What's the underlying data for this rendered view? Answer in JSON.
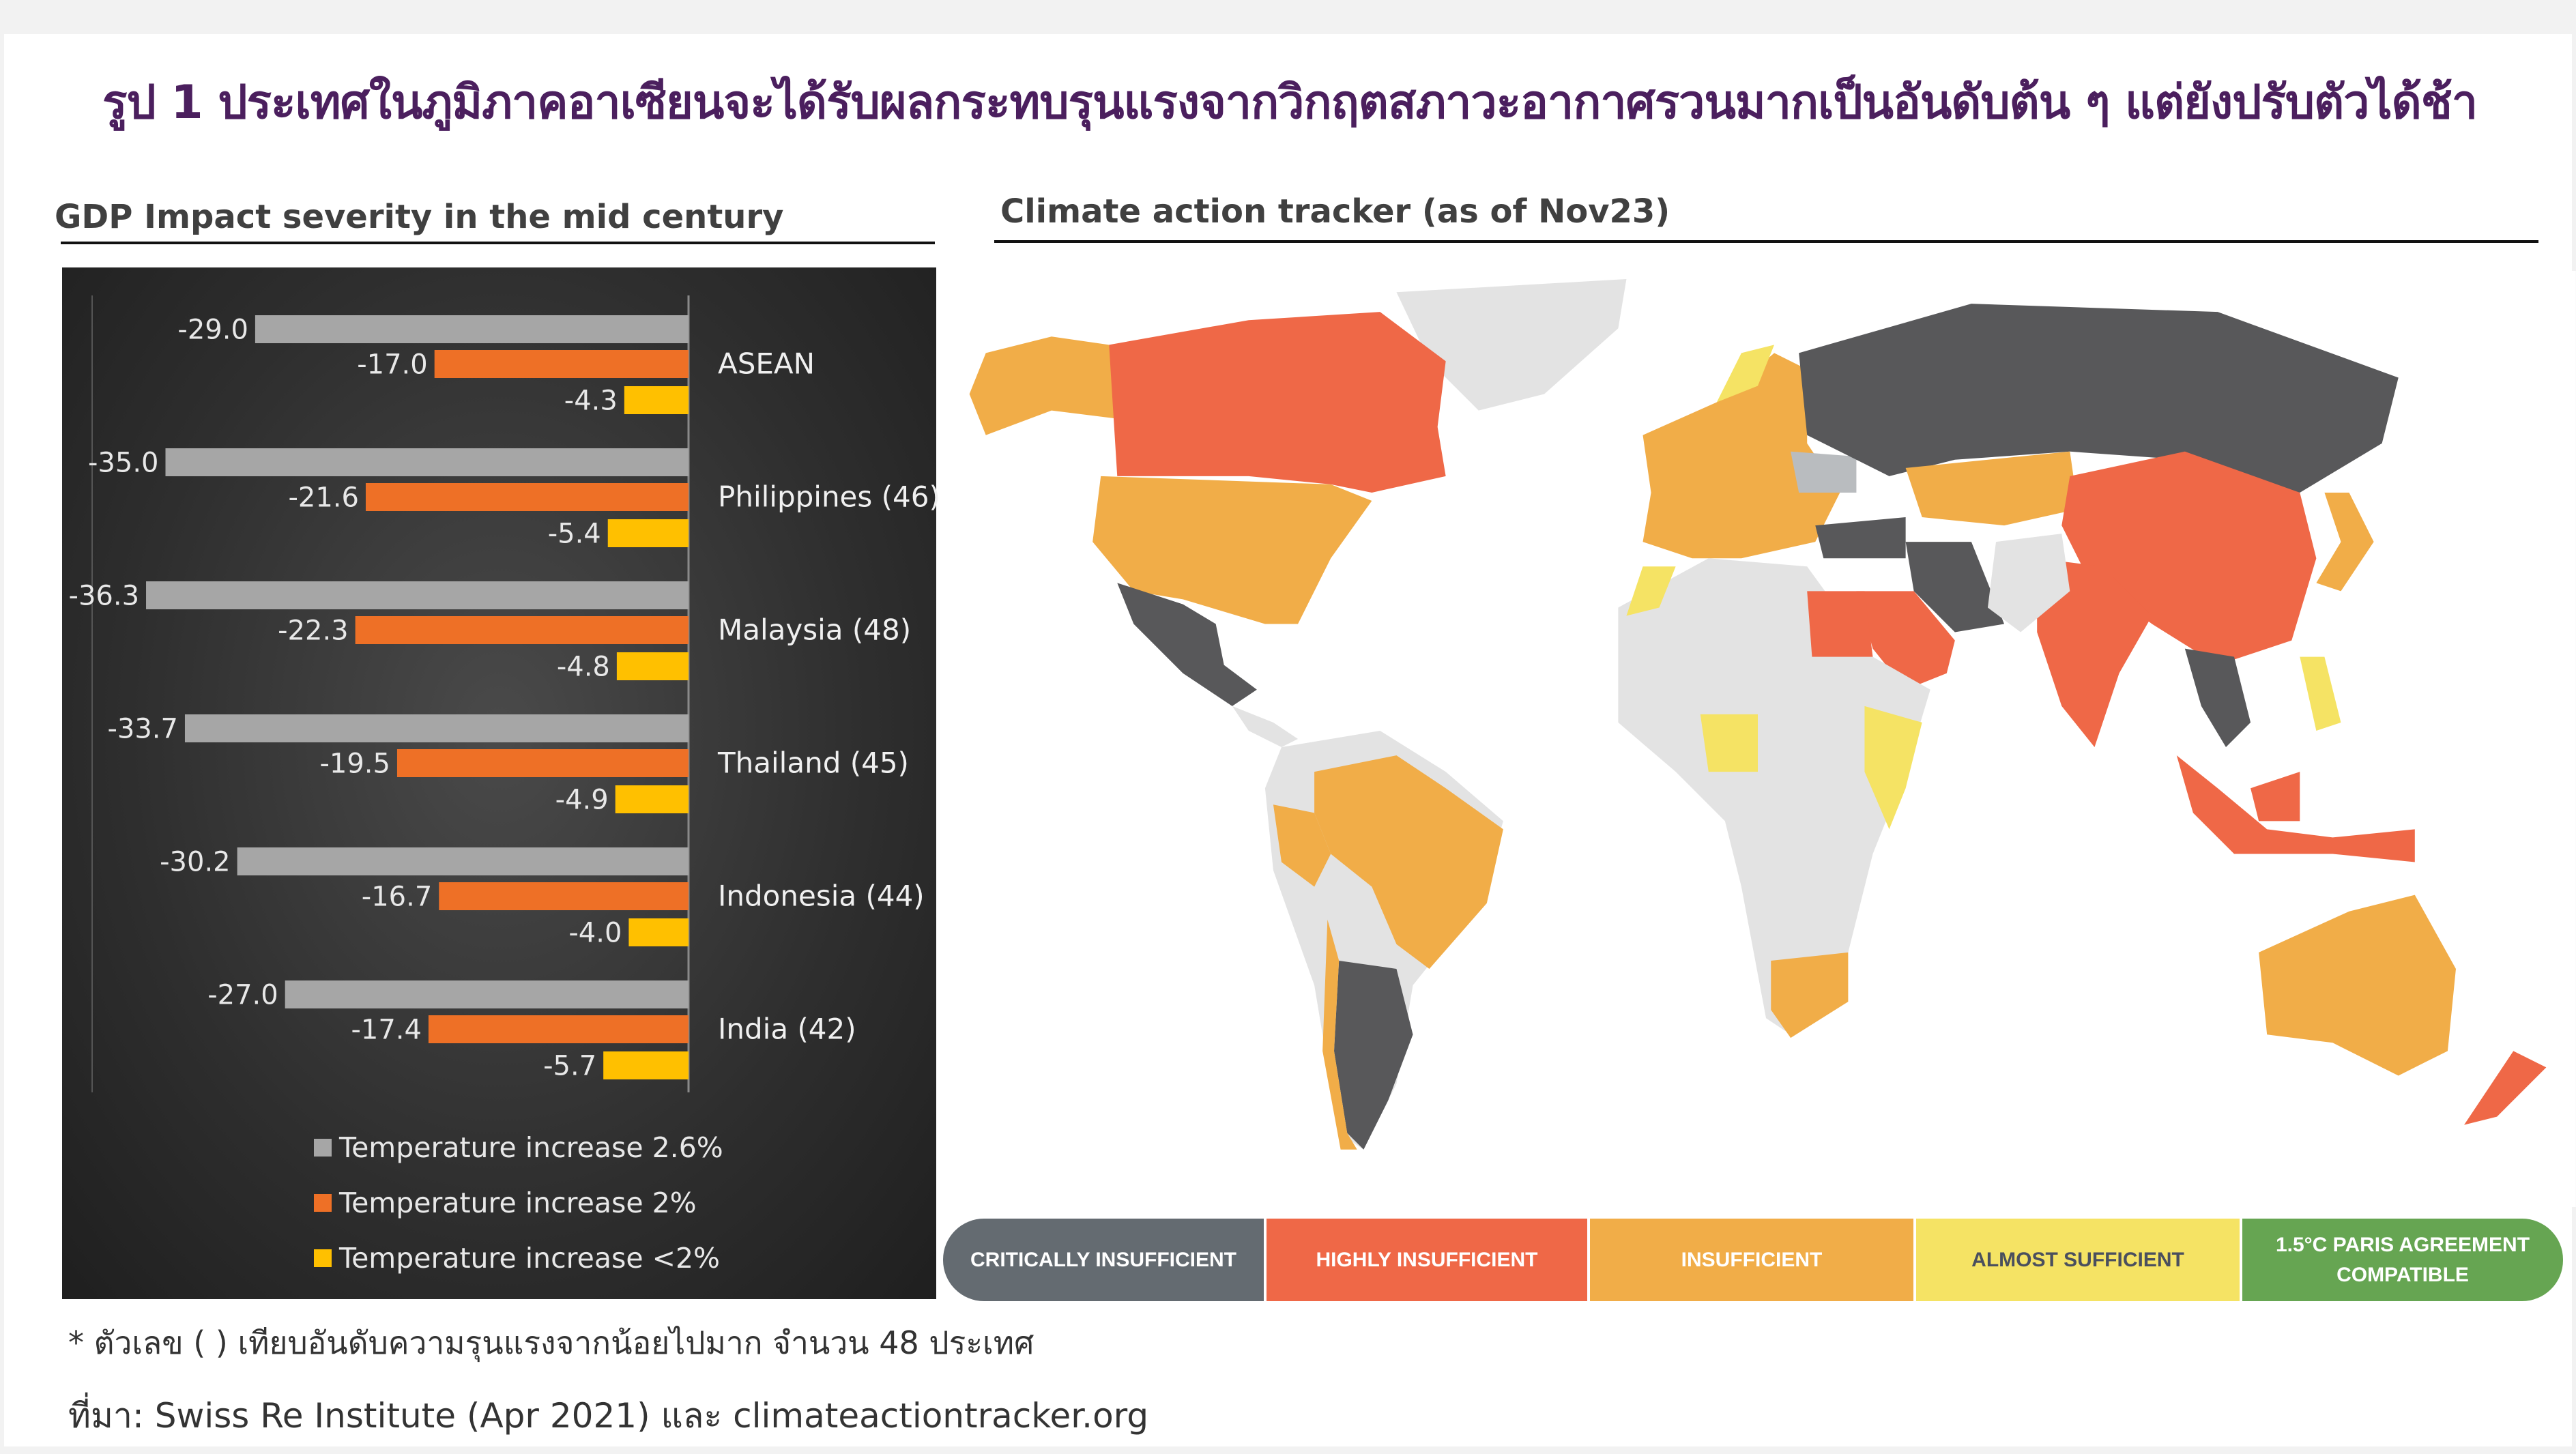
{
  "title": "รูป 1 ประเทศในภูมิภาคอาเซียนจะได้รับผลกระทบรุนแรงจากวิกฤตสภาวะอากาศรวนมากเป็นอันดับต้น ๆ แต่ยังปรับตัวได้ช้า",
  "left_heading": "GDP Impact severity in the mid century",
  "right_heading": "Climate action tracker (as of Nov23)",
  "chart_data": {
    "type": "bar",
    "orientation": "horizontal",
    "title": "GDP Impact severity in the mid century",
    "categories": [
      "ASEAN",
      "Philippines (46)",
      "Malaysia (48)",
      "Thailand (45)",
      "Indonesia (44)",
      "India (42)"
    ],
    "series": [
      {
        "name": "Temperature increase 2.6%",
        "color": "#a6a6a6",
        "values": [
          -29.0,
          -35.0,
          -36.3,
          -33.7,
          -30.2,
          -27.0
        ]
      },
      {
        "name": "Temperature increase 2%",
        "color": "#ee7026",
        "values": [
          -17.0,
          -21.6,
          -22.3,
          -19.5,
          -16.7,
          -17.4
        ]
      },
      {
        "name": "Temperature increase <2%",
        "color": "#ffc000",
        "values": [
          -4.3,
          -5.4,
          -4.8,
          -4.9,
          -4.0,
          -5.7
        ]
      }
    ],
    "xlim": [
      -38,
      0
    ],
    "data_labels": true,
    "legend": "bottom"
  },
  "map_legend": [
    {
      "label": "CRITICALLY INSUFFICIENT",
      "color": "#646b71"
    },
    {
      "label": "HIGHLY INSUFFICIENT",
      "color": "#ef6847"
    },
    {
      "label": "INSUFFICIENT",
      "color": "#f1ad48"
    },
    {
      "label": "ALMOST SUFFICIENT",
      "color": "#f5e364",
      "text_color": "#4a4f5e"
    },
    {
      "label": "1.5°C PARIS AGREEMENT COMPATIBLE",
      "color": "#66a552"
    }
  ],
  "footnote": "* ตัวเลข ( ) เทียบอันดับความรุนแรงจากน้อยไปมาก จำนวน 48 ประเทศ",
  "source": "ที่มา: Swiss Re Institute (Apr 2021) และ climateactiontracker.org"
}
